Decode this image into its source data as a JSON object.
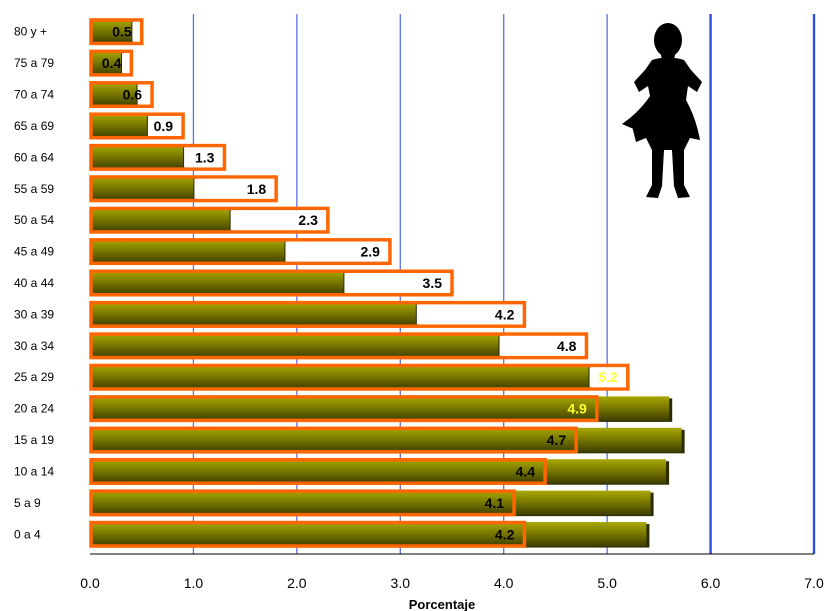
{
  "chart_data": {
    "type": "bar",
    "orientation": "horizontal",
    "categories": [
      "80 y +",
      "75 a 79",
      "70 a 74",
      "65 a 69",
      "60 a 64",
      "55 a 59",
      "50 a 54",
      "45 a 49",
      "40 a 44",
      "30 a 39",
      "30 a 34",
      "25 a 29",
      "20 a 24",
      "15 a 19",
      "10 a 14",
      "5 a 9",
      "0 a 4"
    ],
    "series": [
      {
        "values": [
          0.5,
          0.4,
          0.6,
          0.9,
          1.3,
          1.8,
          2.3,
          2.9,
          3.5,
          4.2,
          4.8,
          5.2,
          4.9,
          4.7,
          4.4,
          4.1,
          4.2
        ],
        "color": "#ff6600",
        "style": "outline"
      },
      {
        "values": [
          0.4,
          0.3,
          0.45,
          0.55,
          0.9,
          1.0,
          1.35,
          1.88,
          2.45,
          3.15,
          3.95,
          4.82,
          5.6,
          5.72,
          5.57,
          5.42,
          5.38
        ],
        "color": "#6b6b00",
        "style": "filled"
      }
    ],
    "xticks": [
      "0.0",
      "1.0",
      "2.0",
      "3.0",
      "4.0",
      "5.0",
      "6.0",
      "7.0"
    ],
    "xlim": [
      0,
      7
    ],
    "xlabel": "Porcentaje",
    "ylabel": "",
    "title": "",
    "grid": "vertical",
    "label_colors": {
      "dark": "#000000",
      "light": "#ffff33"
    },
    "icon": "woman-silhouette-icon"
  }
}
